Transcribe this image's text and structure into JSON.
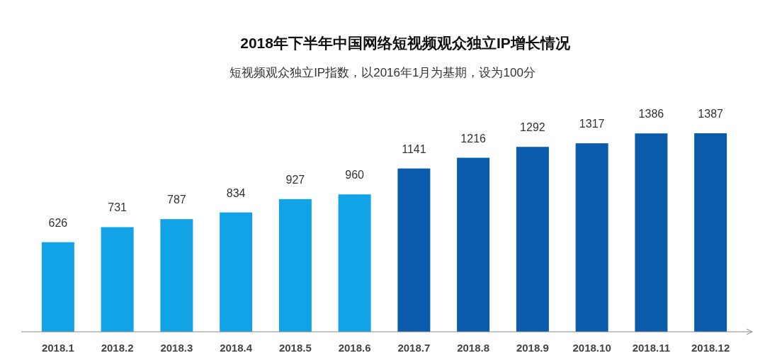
{
  "chart_data": {
    "type": "bar",
    "title": "2018年下半年中国网络短视频观众独立IP增长情况",
    "subtitle": "短视频观众独立IP指数，以2016年1月为基期，设为100分",
    "categories": [
      "2018.1",
      "2018.2",
      "2018.3",
      "2018.4",
      "2018.5",
      "2018.6",
      "2018.7",
      "2018.8",
      "2018.9",
      "2018.10",
      "2018.11",
      "2018.12"
    ],
    "values": [
      626,
      731,
      787,
      834,
      927,
      960,
      1141,
      1216,
      1292,
      1317,
      1386,
      1387
    ],
    "colors": [
      "#12a3e6",
      "#12a3e6",
      "#12a3e6",
      "#12a3e6",
      "#12a3e6",
      "#12a3e6",
      "#0a5bab",
      "#0a5bab",
      "#0a5bab",
      "#0a5bab",
      "#0a5bab",
      "#0a5bab"
    ],
    "data_labels": true
  }
}
